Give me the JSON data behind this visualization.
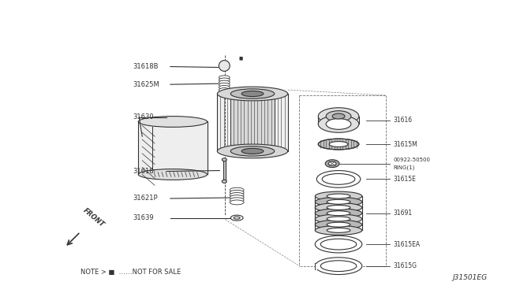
{
  "bg_color": "#ffffff",
  "line_color": "#333333",
  "note_text": "NOTE > ■  ……NOT FOR SALE",
  "diagram_id": "J31501EG",
  "front_label": "FRONT",
  "label_fontsize": 6.0,
  "small_fontsize": 5.5
}
